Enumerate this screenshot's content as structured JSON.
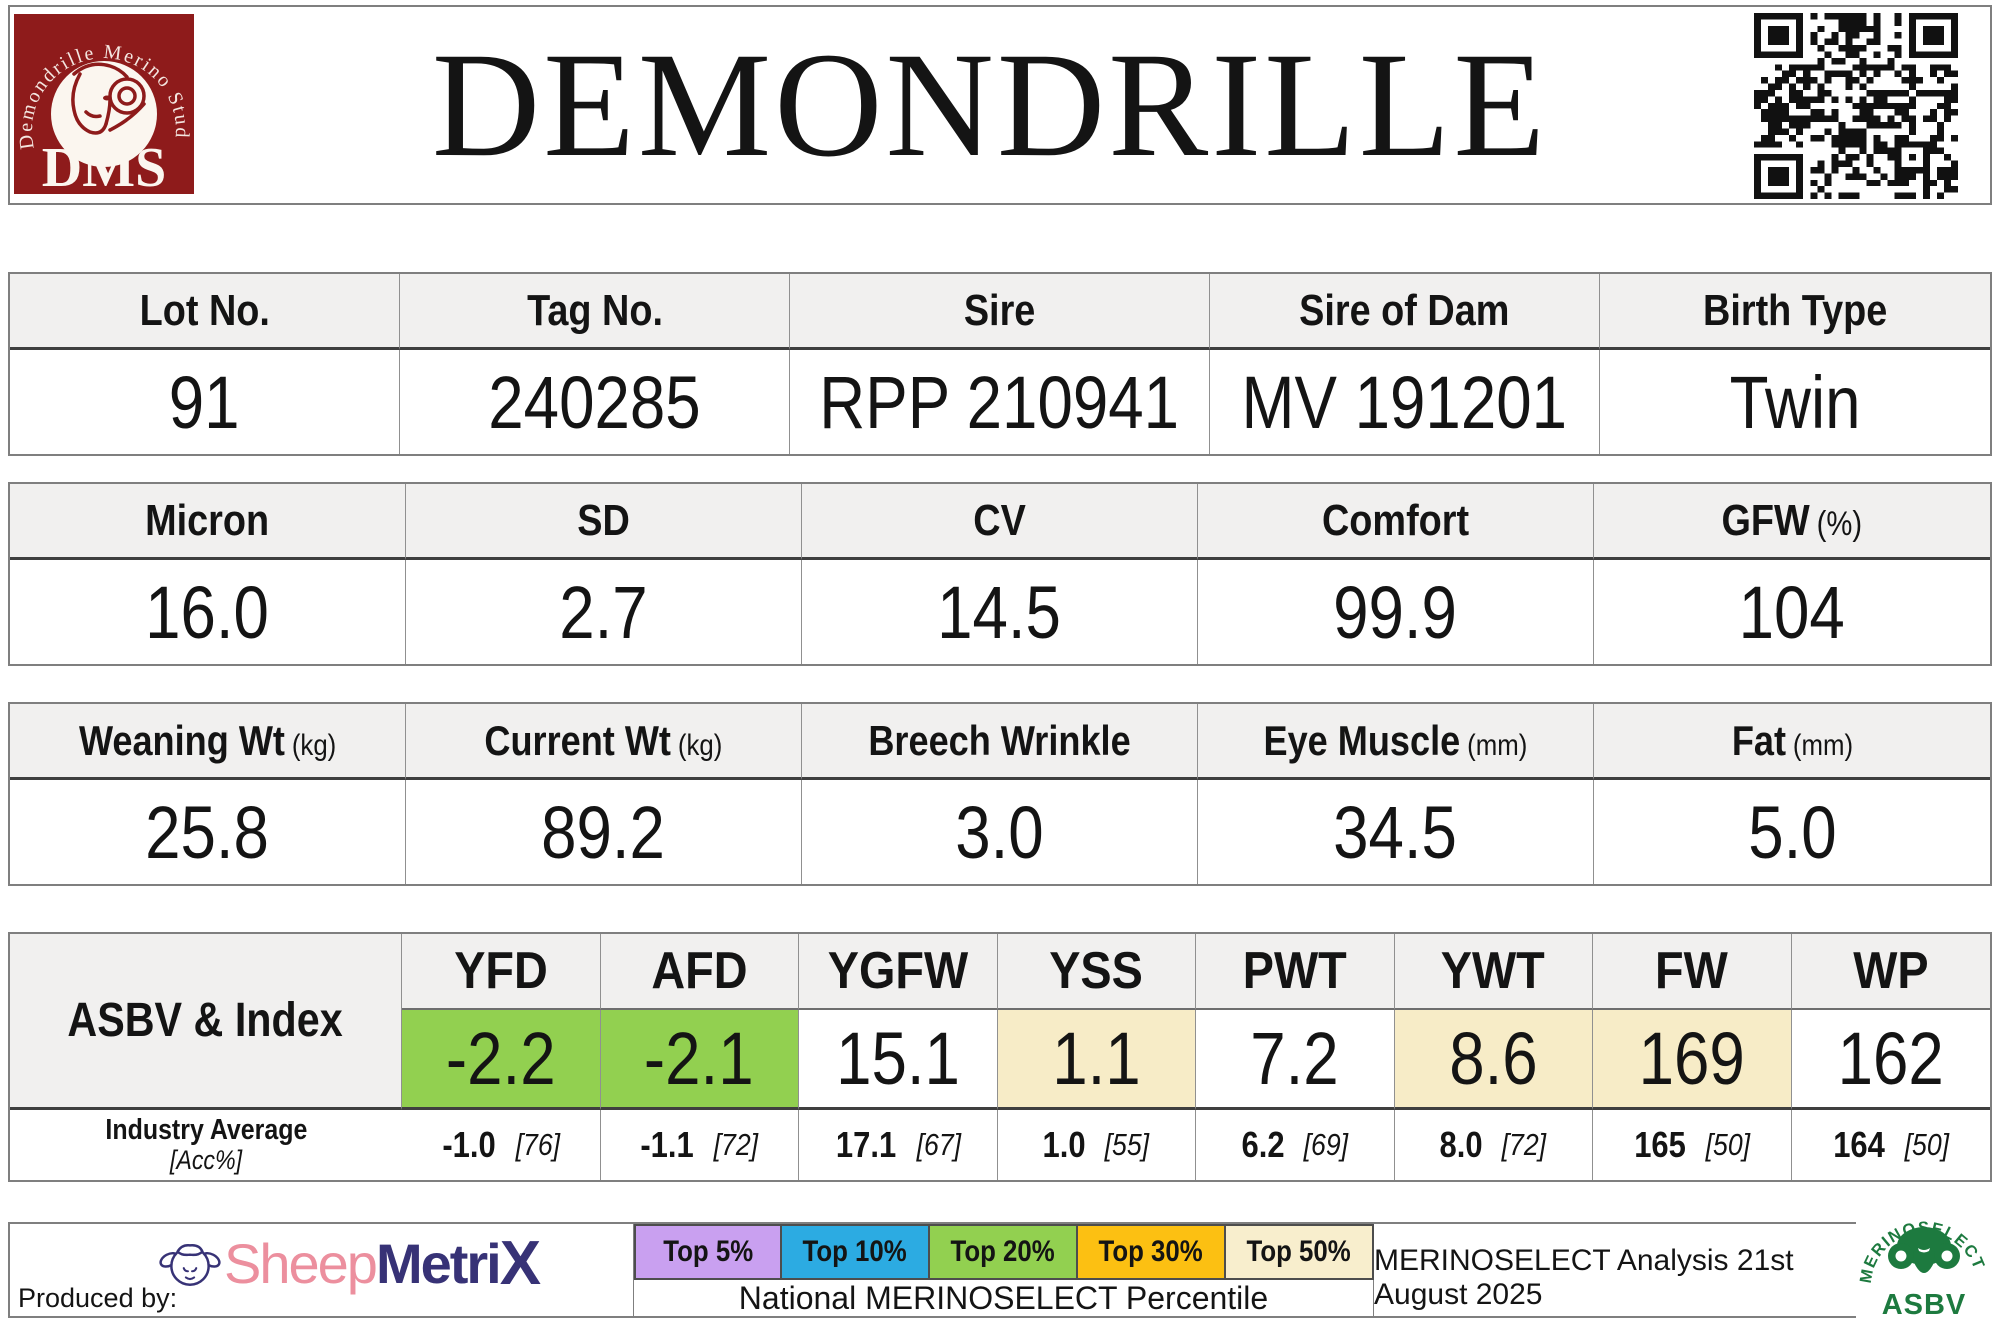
{
  "header": {
    "title": "DEMONDRILLE",
    "stud_logo": {
      "circle_text": "Demondrille Merino Stud",
      "initials": "DMS",
      "bg_color": "#8e1b1b"
    }
  },
  "identity_table": {
    "columns": [
      {
        "label": "Lot No.",
        "value": "91"
      },
      {
        "label": "Tag No.",
        "value": "240285"
      },
      {
        "label": "Sire",
        "value": "RPP 210941"
      },
      {
        "label": "Sire of Dam",
        "value": "MV 191201"
      },
      {
        "label": "Birth Type",
        "value": "Twin"
      }
    ]
  },
  "wool_table": {
    "columns": [
      {
        "label": "Micron",
        "unit": "",
        "value": "16.0"
      },
      {
        "label": "SD",
        "unit": "",
        "value": "2.7"
      },
      {
        "label": "CV",
        "unit": "",
        "value": "14.5"
      },
      {
        "label": "Comfort",
        "unit": "",
        "value": "99.9"
      },
      {
        "label": "GFW",
        "unit": "(%)",
        "value": "104"
      }
    ]
  },
  "body_table": {
    "columns": [
      {
        "label": "Weaning Wt",
        "unit": "(kg)",
        "value": "25.8"
      },
      {
        "label": "Current Wt",
        "unit": "(kg)",
        "value": "89.2"
      },
      {
        "label": "Breech Wrinkle",
        "unit": "",
        "value": "3.0"
      },
      {
        "label": "Eye Muscle",
        "unit": "(mm)",
        "value": "34.5"
      },
      {
        "label": "Fat",
        "unit": "(mm)",
        "value": "5.0"
      }
    ]
  },
  "asbv": {
    "row_label": "ASBV & Index",
    "industry_label": "Industry Average",
    "industry_sublabel": "[Acc%]",
    "columns": [
      {
        "trait": "YFD",
        "value": "-2.2",
        "color": "#92d050",
        "industry": "-1.0",
        "acc": "[76]"
      },
      {
        "trait": "AFD",
        "value": "-2.1",
        "color": "#92d050",
        "industry": "-1.1",
        "acc": "[72]"
      },
      {
        "trait": "YGFW",
        "value": "15.1",
        "color": "#ffffff",
        "industry": "17.1",
        "acc": "[67]"
      },
      {
        "trait": "YSS",
        "value": "1.1",
        "color": "#f7ecc7",
        "industry": "1.0",
        "acc": "[55]"
      },
      {
        "trait": "PWT",
        "value": "7.2",
        "color": "#ffffff",
        "industry": "6.2",
        "acc": "[69]"
      },
      {
        "trait": "YWT",
        "value": "8.6",
        "color": "#f7ecc7",
        "industry": "8.0",
        "acc": "[72]"
      },
      {
        "trait": "FW",
        "value": "169",
        "color": "#f7ecc7",
        "industry": "165",
        "acc": "[50]"
      },
      {
        "trait": "WP",
        "value": "162",
        "color": "#ffffff",
        "industry": "164",
        "acc": "[50]"
      }
    ]
  },
  "footer": {
    "produced_by": "Produced by:",
    "sheepmetrix": {
      "part1": "Sheep",
      "part2": "Metri",
      "part3": "X"
    },
    "legend": [
      {
        "label": "Top 5%",
        "color": "#c9a0f0"
      },
      {
        "label": "Top 10%",
        "color": "#2cabe2"
      },
      {
        "label": "Top 20%",
        "color": "#92d050"
      },
      {
        "label": "Top 30%",
        "color": "#fcc012"
      },
      {
        "label": "Top 50%",
        "color": "#f8eecd"
      }
    ],
    "legend_caption": "National MERINOSELECT Percentile",
    "analysis_note": "MERINOSELECT Analysis 21st August 2025",
    "merinoselect_logo": {
      "arc_text": "MERINOSELECT",
      "sub_text": "ASBV",
      "color": "#1d7a3f"
    }
  }
}
